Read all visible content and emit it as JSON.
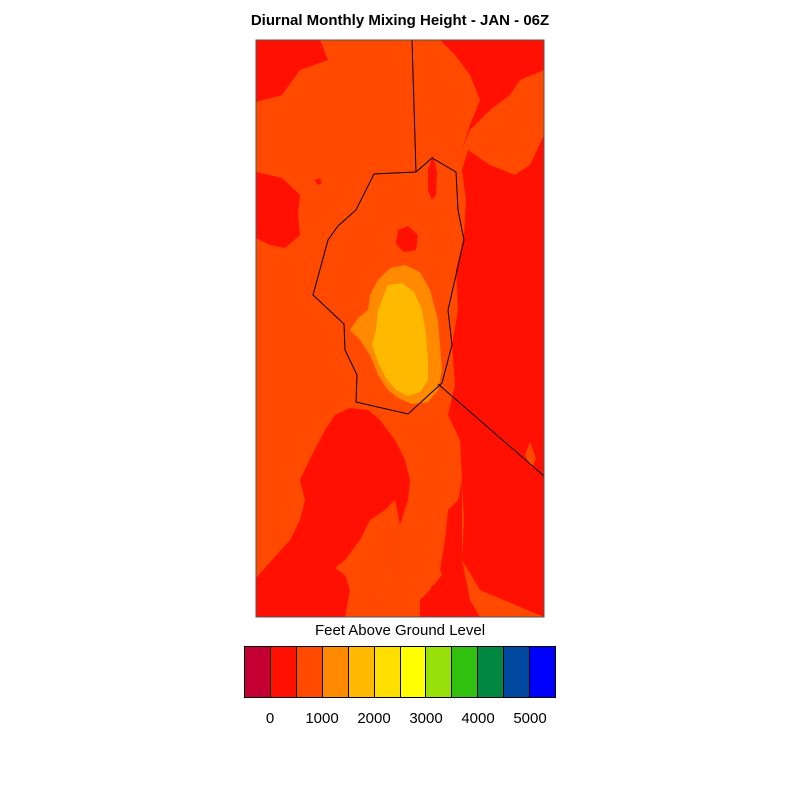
{
  "title": "Diurnal Monthly Mixing Height - JAN - 06Z",
  "legend": {
    "title": "Feet Above Ground Level",
    "colors": [
      "#c40032",
      "#ff1000",
      "#ff4a00",
      "#ff8a00",
      "#ffba00",
      "#ffde00",
      "#ffff00",
      "#98e00a",
      "#30c010",
      "#008840",
      "#0048a0",
      "#0000ff"
    ],
    "tick_labels": [
      "0",
      "1000",
      "2000",
      "3000",
      "4000",
      "5000"
    ]
  },
  "map": {
    "fill_levels": {
      "background": "#ff4a00",
      "low": "#ff1000",
      "mid": "#ff8a00",
      "high": "#ffba00"
    }
  }
}
